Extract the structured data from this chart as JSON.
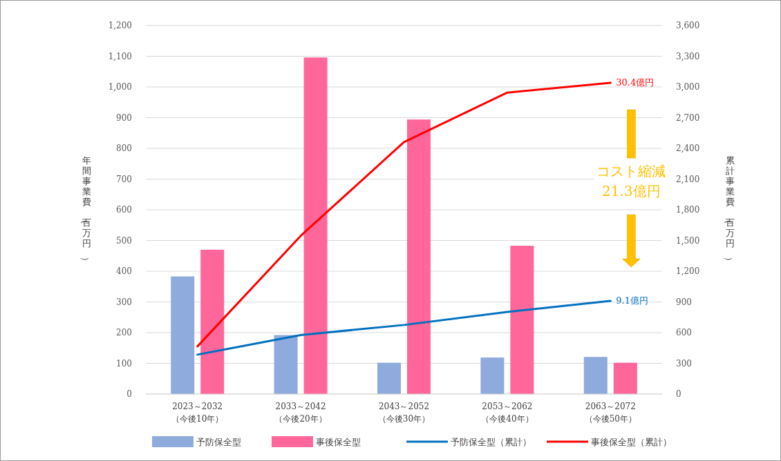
{
  "chart_data": {
    "type": "bar",
    "categories": [
      "2023～2032\n（今後10年）",
      "2033～2042\n（今後20年）",
      "2043～2052\n（今後30年）",
      "2053～2062\n（今後40年）",
      "2063～2072\n（今後50年）"
    ],
    "ylabel": "年間事業費（百万円）",
    "y2label": "累計事業費（百万円）",
    "series": [
      {
        "name": "予防保全型",
        "type": "bar",
        "color": "#8faadc",
        "values": [
          383,
          192,
          102,
          119,
          121
        ]
      },
      {
        "name": "事後保全型",
        "type": "bar",
        "color": "#ff6699",
        "values": [
          470,
          1096,
          894,
          483,
          102
        ]
      },
      {
        "name": "予防保全型（累計）",
        "type": "line",
        "axis": "y2",
        "color": "#0070c0",
        "values": [
          385,
          577,
          675,
          802,
          910
        ]
      },
      {
        "name": "事後保全型（累計）",
        "type": "line",
        "axis": "y2",
        "color": "#ff0000",
        "values": [
          466,
          1546,
          2461,
          2945,
          3040
        ]
      }
    ],
    "ylim": [
      0,
      1200
    ],
    "yticks": [
      0,
      100,
      200,
      300,
      400,
      500,
      600,
      700,
      800,
      900,
      {
        "value": 1000,
        "label": "1,000"
      },
      {
        "value": 1100,
        "label": "1,100"
      },
      {
        "value": 1200,
        "label": "1,200"
      }
    ],
    "y2lim": [
      0,
      3600
    ],
    "y2ticks": [
      0,
      300,
      600,
      900,
      {
        "value": 1200,
        "label": "1,200"
      },
      {
        "value": 1500,
        "label": "1,500"
      },
      {
        "value": 1800,
        "label": "1,800"
      },
      {
        "value": 2100,
        "label": "2,100"
      },
      {
        "value": 2400,
        "label": "2,400"
      },
      {
        "value": 2700,
        "label": "2,700"
      },
      {
        "value": 3000,
        "label": "3,000"
      },
      {
        "value": 3300,
        "label": "3,300"
      },
      {
        "value": 3600,
        "label": "3,600"
      }
    ],
    "annotations": [
      "9.1億円",
      "30.4億円",
      "コスト縮減\n21.3億円"
    ],
    "grid": "y",
    "legend": "bottom",
    "marker": "none"
  }
}
